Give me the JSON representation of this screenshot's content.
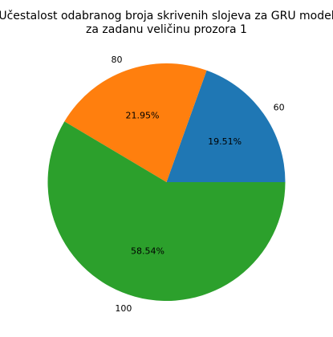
{
  "chart_data": {
    "type": "pie",
    "title_lines": [
      "Učestalost odabranog broja skrivenih slojeva za GRU model",
      "za zadanu veličinu prozora 1"
    ],
    "categories": [
      "60",
      "80",
      "100"
    ],
    "values": [
      19.51,
      21.95,
      58.54
    ],
    "value_labels": [
      "19.51%",
      "21.95%",
      "58.54%"
    ],
    "colors": [
      "#1f77b4",
      "#ff7f0e",
      "#2ca02c"
    ],
    "start_angle_deg": 0,
    "direction": "counterclockwise"
  }
}
